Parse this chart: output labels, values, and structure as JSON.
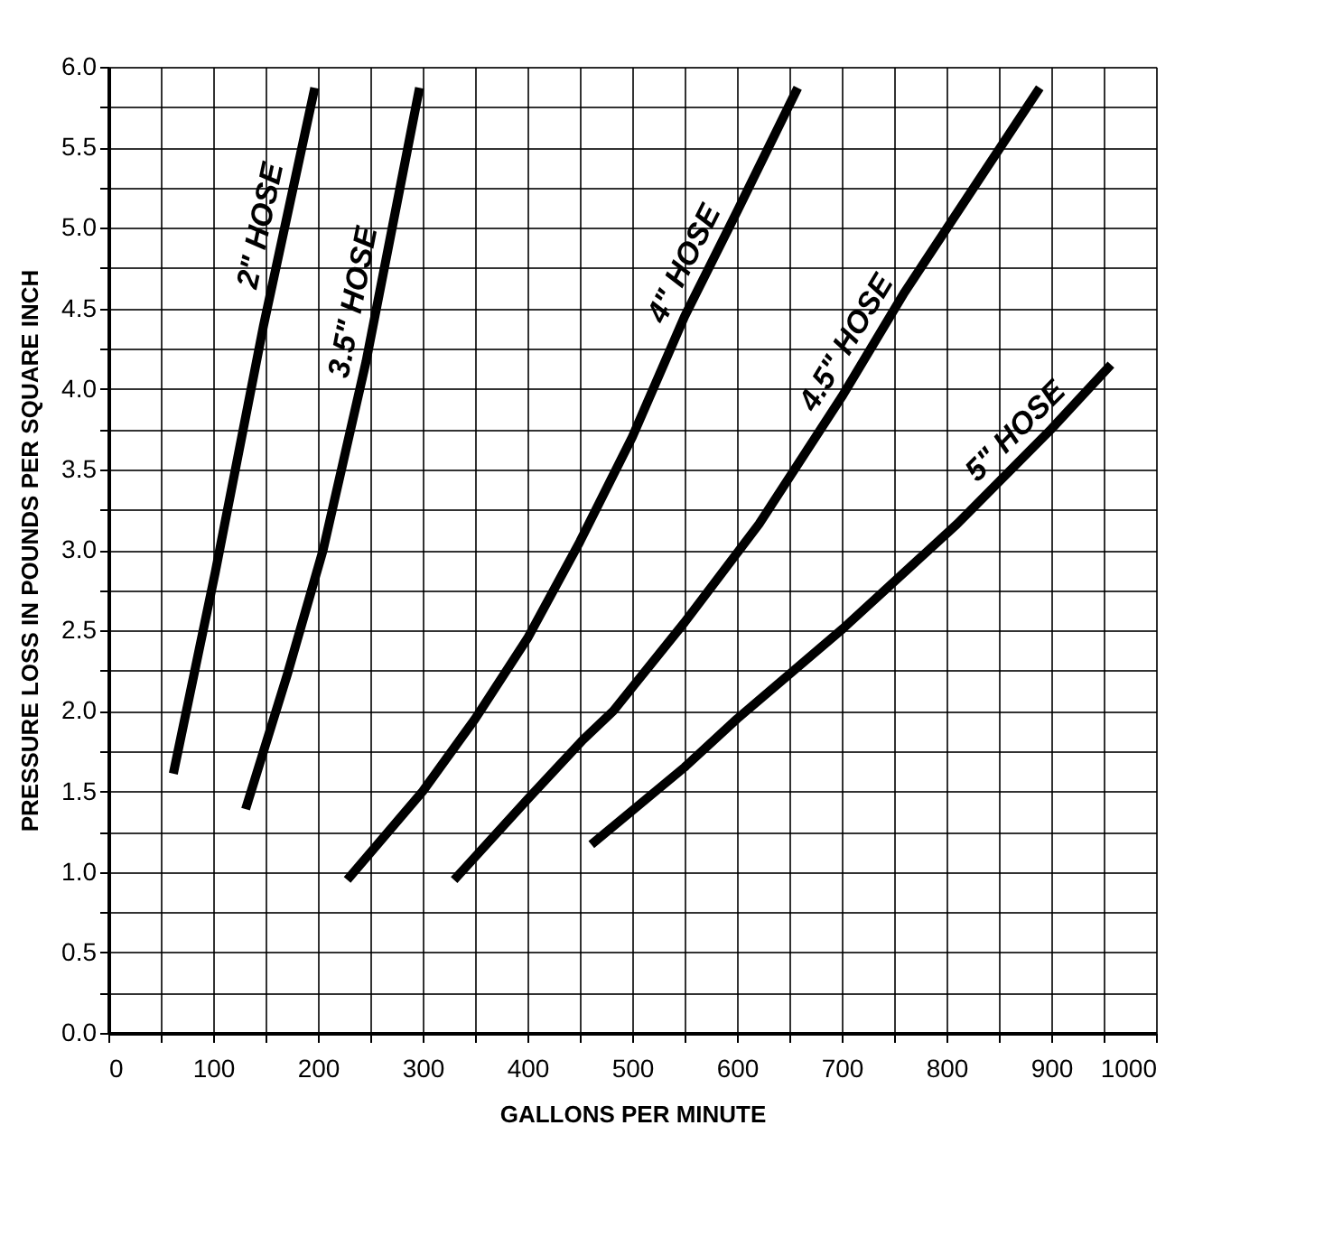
{
  "chart_data": {
    "type": "line",
    "xlabel": "GALLONS PER MINUTE",
    "ylabel": "PRESSURE LOSS IN POUNDS PER SQUARE INCH",
    "xlim": [
      0,
      1000
    ],
    "ylim": [
      0,
      6
    ],
    "xticks": [
      0,
      {
        "value": 50,
        "label": null
      },
      100,
      {
        "value": 150,
        "label": null
      },
      200,
      {
        "value": 250,
        "label": null
      },
      300,
      {
        "value": 350,
        "label": null
      },
      400,
      {
        "value": 450,
        "label": null
      },
      500,
      {
        "value": 550,
        "label": null
      },
      600,
      {
        "value": 650,
        "label": null
      },
      700,
      {
        "value": 750,
        "label": null
      },
      800,
      {
        "value": 850,
        "label": null
      },
      900,
      {
        "value": 950,
        "label": null
      },
      1000
    ],
    "yticks": [
      {
        "value": 0,
        "label": "0.0"
      },
      {
        "value": 0.25,
        "label": null
      },
      0.5,
      {
        "value": 0.75,
        "label": null
      },
      {
        "value": 1,
        "label": "1.0"
      },
      {
        "value": 1.25,
        "label": null
      },
      1.5,
      {
        "value": 1.75,
        "label": null
      },
      {
        "value": 2,
        "label": "2.0"
      },
      {
        "value": 2.25,
        "label": null
      },
      2.5,
      {
        "value": 2.75,
        "label": null
      },
      {
        "value": 3,
        "label": "3.0"
      },
      {
        "value": 3.25,
        "label": null
      },
      3.5,
      {
        "value": 3.75,
        "label": null
      },
      {
        "value": 4,
        "label": "4.0"
      },
      {
        "value": 4.25,
        "label": null
      },
      4.5,
      {
        "value": 4.75,
        "label": null
      },
      {
        "value": 5,
        "label": "5.0"
      },
      {
        "value": 5.25,
        "label": null
      },
      5.5,
      {
        "value": 5.75,
        "label": null
      },
      {
        "value": 6,
        "label": "6.0"
      }
    ],
    "grid": true,
    "marker": "none",
    "line_style": "solid",
    "series": [
      {
        "name": "2\" HOSE",
        "color": "#000000",
        "x": [
          62,
          102,
          148,
          197
        ],
        "values": [
          1.61,
          2.86,
          4.39,
          5.87
        ]
      },
      {
        "name": "3.5\" HOSE",
        "color": "#000000",
        "x": [
          131,
          171,
          205,
          246,
          297
        ],
        "values": [
          1.39,
          2.23,
          3.0,
          4.17,
          5.87
        ]
      },
      {
        "name": "4\" HOSE",
        "color": "#000000",
        "x": [
          228,
          300,
          350,
          400,
          450,
          500,
          550,
          600,
          658
        ],
        "values": [
          0.95,
          1.5,
          1.95,
          2.45,
          3.05,
          3.7,
          4.45,
          5.1,
          5.87
        ]
      },
      {
        "name": "4.5\" HOSE",
        "color": "#000000",
        "x": [
          330,
          400,
          453,
          482,
          550,
          621,
          700,
          760,
          889
        ],
        "values": [
          0.95,
          1.45,
          1.82,
          2.0,
          2.55,
          3.16,
          3.95,
          4.6,
          5.87
        ]
      },
      {
        "name": "5\" HOSE",
        "color": "#000000",
        "x": [
          461,
          550,
          600,
          701,
          810,
          900,
          957
        ],
        "values": [
          1.17,
          1.65,
          1.95,
          2.51,
          3.16,
          3.75,
          4.15
        ]
      }
    ]
  }
}
